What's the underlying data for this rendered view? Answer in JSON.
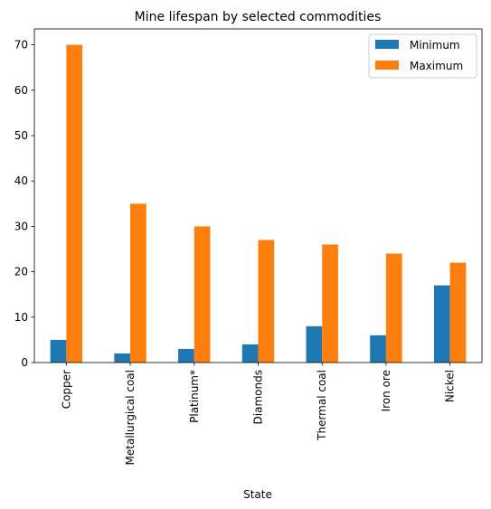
{
  "chart_data": {
    "type": "bar",
    "title": "Mine lifespan by selected commodities",
    "xlabel": "State",
    "ylabel": "",
    "categories": [
      "Copper",
      "Metallurgical coal",
      "Platinum*",
      "Diamonds",
      "Thermal coal",
      "Iron ore",
      "Nickel"
    ],
    "series": [
      {
        "name": "Minimum",
        "values": [
          5,
          2,
          3,
          4,
          8,
          6,
          17
        ],
        "color": "#1f77b4"
      },
      {
        "name": "Maximum",
        "values": [
          70,
          35,
          30,
          27,
          26,
          24,
          22
        ],
        "color": "#ff7f0e"
      }
    ],
    "ylim": [
      0,
      73.5
    ],
    "yticks": [
      0,
      10,
      20,
      30,
      40,
      50,
      60,
      70
    ],
    "grid": false,
    "legend_position": "top-right"
  }
}
